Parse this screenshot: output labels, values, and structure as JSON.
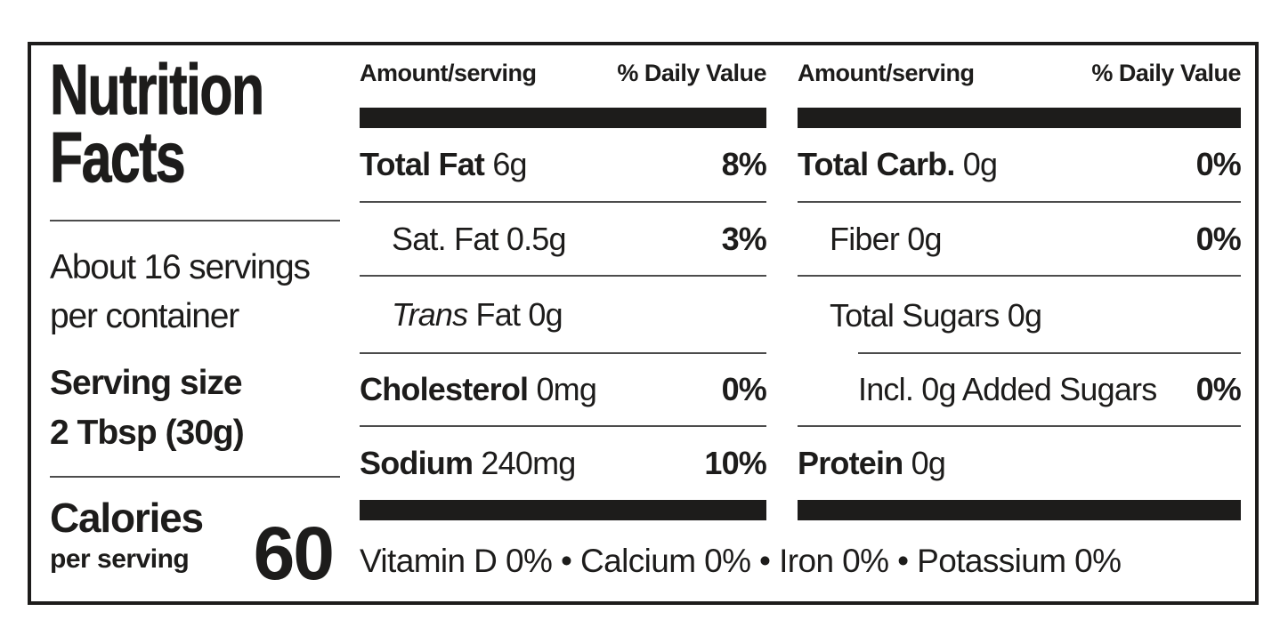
{
  "label": {
    "title_line1": "Nutrition",
    "title_line2": "Facts",
    "servings_line1": "About 16 servings",
    "servings_line2": "per container",
    "serving_size_label": "Serving size",
    "serving_size_value": "2 Tbsp (30g)",
    "calories_label": "Calories",
    "calories_sub": "per serving",
    "calories_value": "60"
  },
  "columns": {
    "header_amount": "Amount/serving",
    "header_dv": "% Daily Value"
  },
  "mid": {
    "rows": [
      {
        "name": "Total Fat",
        "amount": " 6g",
        "dv": "8%"
      },
      {
        "name": "Sat. Fat",
        "amount": " 0.5g",
        "dv": "3%"
      },
      {
        "name": "Trans",
        "amount": " Fat 0g",
        "dv": ""
      },
      {
        "name": "Cholesterol",
        "amount": " 0mg",
        "dv": "0%"
      },
      {
        "name": "Sodium",
        "amount": " 240mg",
        "dv": "10%"
      }
    ]
  },
  "right": {
    "rows": [
      {
        "name": "Total Carb.",
        "amount": " 0g",
        "dv": "0%"
      },
      {
        "name": "Fiber",
        "amount": " 0g",
        "dv": "0%"
      },
      {
        "name": "Total Sugars",
        "amount": " 0g",
        "dv": ""
      },
      {
        "name": "Incl. 0g Added Sugars",
        "amount": "",
        "dv": "0%"
      },
      {
        "name": "Protein",
        "amount": " 0g",
        "dv": ""
      }
    ]
  },
  "footer": {
    "vitamins": "Vitamin D 0% • Calcium 0% • Iron 0% • Potassium 0%"
  },
  "colors": {
    "ink": "#1d1c1b",
    "background": "#ffffff",
    "rule_gray": "#4c4c4c"
  }
}
